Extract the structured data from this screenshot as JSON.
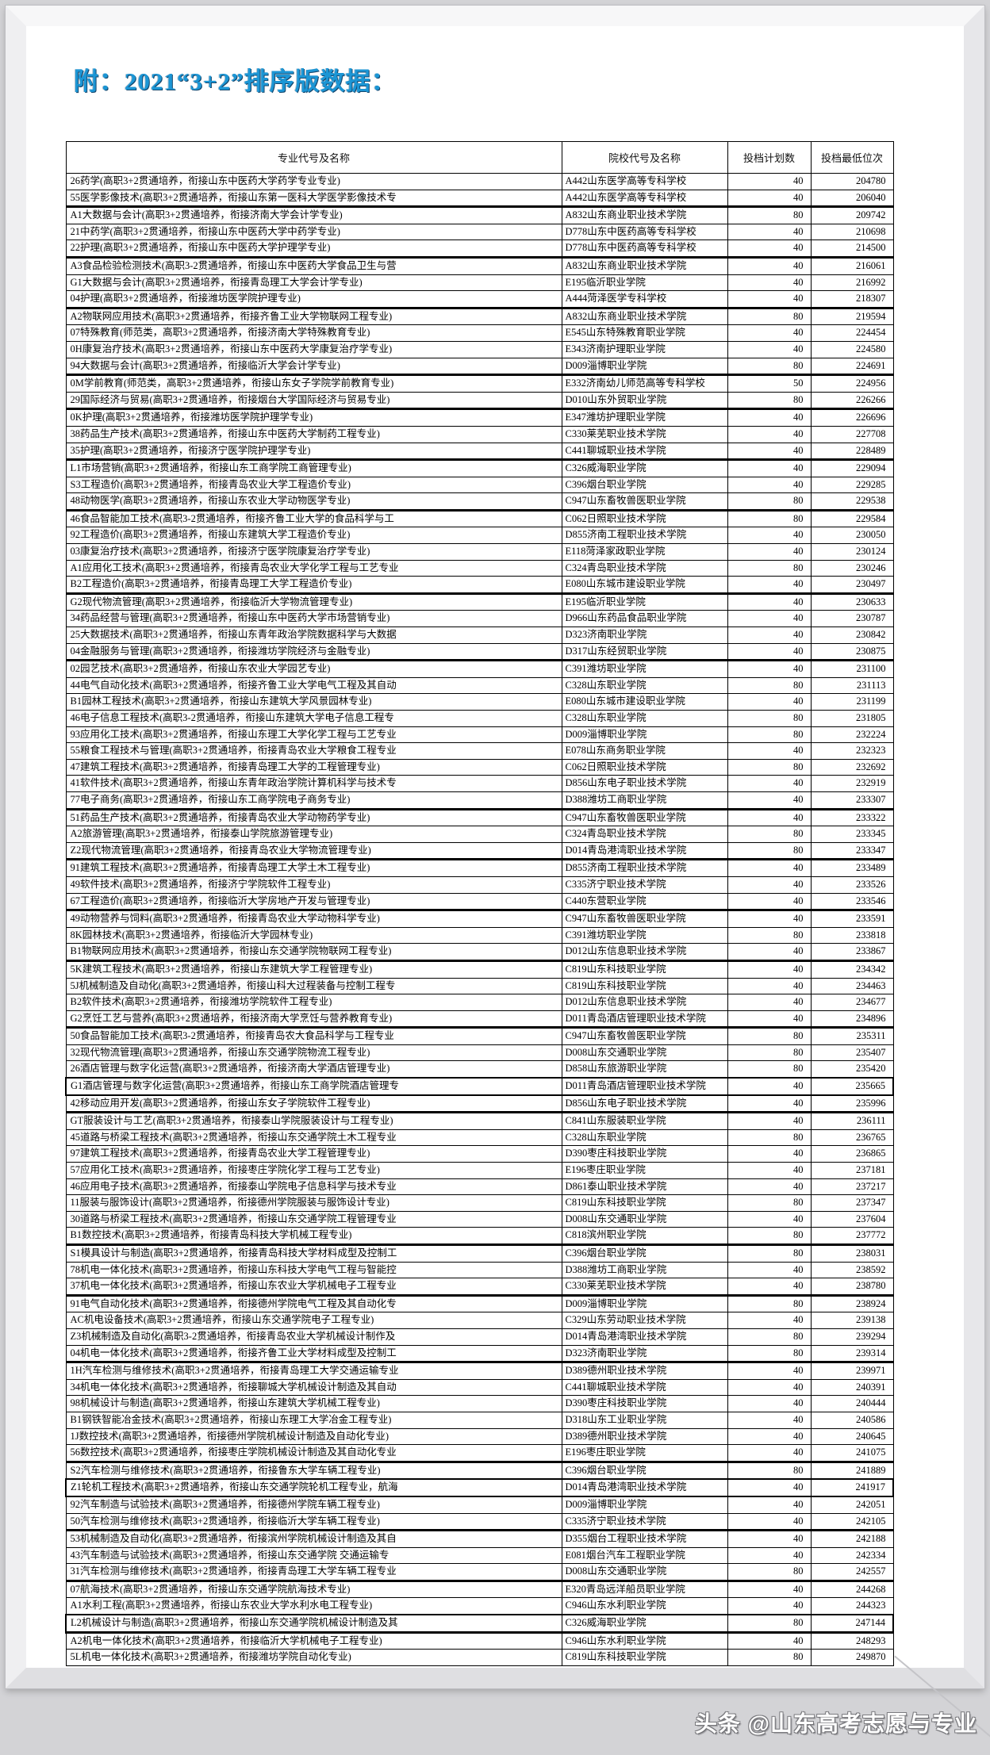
{
  "page_title": "附：2021“3+2”排序版数据：",
  "watermark": "头条 @山东高考志愿与专业",
  "colors": {
    "title_blue": "#1c96d5",
    "table_border": "#000000",
    "frame_gray": "#d3d3d6"
  },
  "table": {
    "headers": [
      "专业代号及名称",
      "院校代号及名称",
      "投档计划数",
      "投档最低位次"
    ],
    "rows": [
      {
        "major": "26药学(高职3+2贯通培养，衔接山东中医药大学药学专业专业)",
        "college": "A442山东医学高等专科学校",
        "plan": "40",
        "rank": "204780",
        "thick_top": false,
        "boxed": false
      },
      {
        "major": "55医学影像技术(高职3+2贯通培养，衔接山东第一医科大学医学影像技术专",
        "college": "A442山东医学高等专科学校",
        "plan": "40",
        "rank": "206040",
        "thick_top": false,
        "boxed": false
      },
      {
        "major": "A1大数据与会计(高职3+2贯通培养，衔接济南大学会计学专业)",
        "college": "A832山东商业职业技术学院",
        "plan": "80",
        "rank": "209742",
        "thick_top": true,
        "boxed": false
      },
      {
        "major": "21中药学(高职3+2贯通培养，衔接山东中医药大学中药学专业)",
        "college": "D778山东中医药高等专科学校",
        "plan": "40",
        "rank": "210698",
        "thick_top": false,
        "boxed": false
      },
      {
        "major": "22护理(高职3+2贯通培养，衔接山东中医药大学护理学专业)",
        "college": "D778山东中医药高等专科学校",
        "plan": "40",
        "rank": "214500",
        "thick_top": false,
        "boxed": false
      },
      {
        "major": "A3食品检验检测技术(高职3-2贯通培养，衔接山东中医药大学食品卫生与营",
        "college": "A832山东商业职业技术学院",
        "plan": "40",
        "rank": "216061",
        "thick_top": true,
        "boxed": false
      },
      {
        "major": "G1大数据与会计(高职3+2贯通培养，衔接青岛理工大学会计学专业)",
        "college": "E195临沂职业学院",
        "plan": "40",
        "rank": "216992",
        "thick_top": false,
        "boxed": false
      },
      {
        "major": "04护理(高职3+2贯通培养，衔接潍坊医学院护理专业)",
        "college": "A444菏泽医学专科学校",
        "plan": "40",
        "rank": "218307",
        "thick_top": false,
        "boxed": false
      },
      {
        "major": "A2物联网应用技术(高职3+2贯通培养，衔接齐鲁工业大学物联网工程专业)",
        "college": "A832山东商业职业技术学院",
        "plan": "80",
        "rank": "219594",
        "thick_top": true,
        "boxed": false
      },
      {
        "major": "07特殊教育(师范类，高职3+2贯通培养，衔接济南大学特殊教育专业)",
        "college": "E545山东特殊教育职业学院",
        "plan": "40",
        "rank": "224454",
        "thick_top": false,
        "boxed": false
      },
      {
        "major": "0H康复治疗技术(高职3+2贯通培养，衔接山东中医药大学康复治疗学专业)",
        "college": "E343济南护理职业学院",
        "plan": "40",
        "rank": "224580",
        "thick_top": false,
        "boxed": false
      },
      {
        "major": "94大数据与会计(高职3+2贯通培养，衔接临沂大学会计学专业)",
        "college": "D009淄博职业学院",
        "plan": "80",
        "rank": "224691",
        "thick_top": false,
        "boxed": false
      },
      {
        "major": "0M学前教育(师范类，高职3+2贯通培养，衔接山东女子学院学前教育专业)",
        "college": "E332济南幼儿师范高等专科学校",
        "plan": "50",
        "rank": "224956",
        "thick_top": true,
        "boxed": false
      },
      {
        "major": "29国际经济与贸易(高职3+2贯通培养，衔接烟台大学国际经济与贸易专业)",
        "college": "D010山东外贸职业学院",
        "plan": "80",
        "rank": "226266",
        "thick_top": false,
        "boxed": false
      },
      {
        "major": "0K护理(高职3+2贯通培养，衔接潍坊医学院护理学专业)",
        "college": "E347潍坊护理职业学院",
        "plan": "40",
        "rank": "226696",
        "thick_top": true,
        "boxed": false
      },
      {
        "major": "38药品生产技术(高职3+2贯通培养，衔接山东中医药大学制药工程专业)",
        "college": "C330莱芜职业技术学院",
        "plan": "40",
        "rank": "227708",
        "thick_top": false,
        "boxed": false
      },
      {
        "major": "35护理(高职3+2贯通培养，衔接济宁医学院护理学专业)",
        "college": "C441聊城职业技术学院",
        "plan": "40",
        "rank": "228489",
        "thick_top": false,
        "boxed": false
      },
      {
        "major": "L1市场营销(高职3+2贯通培养，衔接山东工商学院工商管理专业)",
        "college": "C326威海职业学院",
        "plan": "40",
        "rank": "229094",
        "thick_top": true,
        "boxed": false
      },
      {
        "major": "S3工程造价(高职3+2贯通培养，衔接青岛农业大学工程造价专业)",
        "college": "C396烟台职业学院",
        "plan": "40",
        "rank": "229285",
        "thick_top": false,
        "boxed": false
      },
      {
        "major": "48动物医学(高职3+2贯通培养，衔接山东农业大学动物医学专业)",
        "college": "C947山东畜牧兽医职业学院",
        "plan": "80",
        "rank": "229538",
        "thick_top": false,
        "boxed": false
      },
      {
        "major": "46食品智能加工技术(高职3-2贯通培养，衔接齐鲁工业大学的食品科学与工",
        "college": "C062日照职业技术学院",
        "plan": "80",
        "rank": "229584",
        "thick_top": true,
        "boxed": false
      },
      {
        "major": "92工程造价(高职3+2贯通培养，衔接山东建筑大学工程造价专业)",
        "college": "D855济南工程职业技术学院",
        "plan": "40",
        "rank": "230050",
        "thick_top": false,
        "boxed": false
      },
      {
        "major": "03康复治疗技术(高职3+2贯通培养，衔接济宁医学院康复治疗学专业)",
        "college": "E118菏泽家政职业学院",
        "plan": "40",
        "rank": "230124",
        "thick_top": false,
        "boxed": false
      },
      {
        "major": "A1应用化工技术(高职3+2贯通培养，衔接青岛农业大学化学工程与工艺专业",
        "college": "C324青岛职业技术学院",
        "plan": "80",
        "rank": "230246",
        "thick_top": false,
        "boxed": false
      },
      {
        "major": "B2工程造价(高职3+2贯通培养，衔接青岛理工大学工程造价专业)",
        "college": "E080山东城市建设职业学院",
        "plan": "40",
        "rank": "230497",
        "thick_top": false,
        "boxed": false
      },
      {
        "major": "G2现代物流管理(高职3+2贯通培养，衔接临沂大学物流管理专业)",
        "college": "E195临沂职业学院",
        "plan": "40",
        "rank": "230633",
        "thick_top": true,
        "boxed": false
      },
      {
        "major": "34药品经营与管理(高职3+2贯通培养，衔接山东中医药大学市场营销专业)",
        "college": "D966山东药品食品职业学院",
        "plan": "40",
        "rank": "230787",
        "thick_top": false,
        "boxed": false
      },
      {
        "major": "25大数据技术(高职3+2贯通培养，衔接山东青年政治学院数据科学与大数据",
        "college": "D323济南职业学院",
        "plan": "40",
        "rank": "230842",
        "thick_top": false,
        "boxed": false
      },
      {
        "major": "04金融服务与管理(高职3+2贯通培养，衔接潍坊学院经济与金融专业)",
        "college": "D317山东经贸职业学院",
        "plan": "40",
        "rank": "230875",
        "thick_top": false,
        "boxed": false
      },
      {
        "major": "02园艺技术(高职3+2贯通培养，衔接山东农业大学园艺专业)",
        "college": "C391潍坊职业学院",
        "plan": "40",
        "rank": "231100",
        "thick_top": true,
        "boxed": false
      },
      {
        "major": "44电气自动化技术(高职3+2贯通培养，衔接齐鲁工业大学电气工程及其自动",
        "college": "C328山东职业学院",
        "plan": "80",
        "rank": "231113",
        "thick_top": false,
        "boxed": false
      },
      {
        "major": "B1园林工程技术(高职3+2贯通培养，衔接山东建筑大学风景园林专业)",
        "college": "E080山东城市建设职业学院",
        "plan": "40",
        "rank": "231199",
        "thick_top": false,
        "boxed": false
      },
      {
        "major": "46电子信息工程技术(高职3-2贯通培养，衔接山东建筑大学电子信息工程专",
        "college": "C328山东职业学院",
        "plan": "80",
        "rank": "231805",
        "thick_top": false,
        "boxed": false
      },
      {
        "major": "93应用化工技术(高职3+2贯通培养，衔接山东理工大学化学工程与工艺专业",
        "college": "D009淄博职业学院",
        "plan": "80",
        "rank": "232224",
        "thick_top": false,
        "boxed": false
      },
      {
        "major": "55粮食工程技术与管理(高职3+2贯通培养，衔接青岛农业大学粮食工程专业",
        "college": "E078山东商务职业学院",
        "plan": "40",
        "rank": "232323",
        "thick_top": false,
        "boxed": false
      },
      {
        "major": "47建筑工程技术(高职3+2贯通培养，衔接青岛理工大学的工程管理专业)",
        "college": "C062日照职业技术学院",
        "plan": "80",
        "rank": "232692",
        "thick_top": false,
        "boxed": false
      },
      {
        "major": "41软件技术(高职3+2贯通培养，衔接山东青年政治学院计算机科学与技术专",
        "college": "D856山东电子职业技术学院",
        "plan": "40",
        "rank": "232919",
        "thick_top": false,
        "boxed": false
      },
      {
        "major": "77电子商务(高职3+2贯通培养，衔接山东工商学院电子商务专业)",
        "college": "D388潍坊工商职业学院",
        "plan": "40",
        "rank": "233307",
        "thick_top": false,
        "boxed": false
      },
      {
        "major": "51药品生产技术(高职3+2贯通培养，衔接青岛农业大学动物药学专业)",
        "college": "C947山东畜牧兽医职业学院",
        "plan": "40",
        "rank": "233322",
        "thick_top": true,
        "boxed": false
      },
      {
        "major": "A2旅游管理(高职3+2贯通培养，衔接泰山学院旅游管理专业)",
        "college": "C324青岛职业技术学院",
        "plan": "80",
        "rank": "233345",
        "thick_top": false,
        "boxed": false
      },
      {
        "major": "Z2现代物流管理(高职3+2贯通培养，衔接青岛农业大学物流管理专业)",
        "college": "D014青岛港湾职业技术学院",
        "plan": "80",
        "rank": "233347",
        "thick_top": false,
        "boxed": false
      },
      {
        "major": "91建筑工程技术(高职3+2贯通培养，衔接青岛理工大学土木工程专业)",
        "college": "D855济南工程职业技术学院",
        "plan": "40",
        "rank": "233489",
        "thick_top": true,
        "boxed": false
      },
      {
        "major": "49软件技术(高职3+2贯通培养，衔接济宁学院软件工程专业)",
        "college": "C335济宁职业技术学院",
        "plan": "40",
        "rank": "233526",
        "thick_top": false,
        "boxed": false
      },
      {
        "major": "67工程造价(高职3+2贯通培养，衔接临沂大学房地产开发与管理专业)",
        "college": "C440东营职业学院",
        "plan": "40",
        "rank": "233546",
        "thick_top": false,
        "boxed": false
      },
      {
        "major": "49动物营养与饲料(高职3+2贯通培养，衔接青岛农业大学动物科学专业)",
        "college": "C947山东畜牧兽医职业学院",
        "plan": "40",
        "rank": "233591",
        "thick_top": true,
        "boxed": false
      },
      {
        "major": "8K园林技术(高职3+2贯通培养，衔接临沂大学园林专业)",
        "college": "C391潍坊职业学院",
        "plan": "80",
        "rank": "233818",
        "thick_top": false,
        "boxed": false
      },
      {
        "major": "B1物联网应用技术(高职3+2贯通培养，衔接山东交通学院物联网工程专业)",
        "college": "D012山东信息职业技术学院",
        "plan": "40",
        "rank": "233867",
        "thick_top": false,
        "boxed": false
      },
      {
        "major": "5K建筑工程技术(高职3+2贯通培养，衔接山东建筑大学工程管理专业)",
        "college": "C819山东科技职业学院",
        "plan": "40",
        "rank": "234342",
        "thick_top": true,
        "boxed": false
      },
      {
        "major": "5J机械制造及自动化(高职3+2贯通培养，衔接山科大过程装备与控制工程专",
        "college": "C819山东科技职业学院",
        "plan": "40",
        "rank": "234463",
        "thick_top": false,
        "boxed": false
      },
      {
        "major": "B2软件技术(高职3+2贯通培养，衔接潍坊学院软件工程专业)",
        "college": "D012山东信息职业技术学院",
        "plan": "40",
        "rank": "234677",
        "thick_top": false,
        "boxed": false
      },
      {
        "major": "G2烹饪工艺与营养(高职3+2贯通培养，衔接济南大学烹饪与营养教育专业)",
        "college": "D011青岛酒店管理职业技术学院",
        "plan": "40",
        "rank": "234896",
        "thick_top": false,
        "boxed": false
      },
      {
        "major": "50食品智能加工技术(高职3-2贯通培养，衔接青岛农大食品科学与工程专业",
        "college": "C947山东畜牧兽医职业学院",
        "plan": "80",
        "rank": "235311",
        "thick_top": true,
        "boxed": false
      },
      {
        "major": "32现代物流管理(高职3+2贯通培养，衔接山东交通学院物流工程专业)",
        "college": "D008山东交通职业学院",
        "plan": "80",
        "rank": "235407",
        "thick_top": false,
        "boxed": false
      },
      {
        "major": "26酒店管理与数字化运营(高职3+2贯通培养，衔接济南大学酒店管理专业)",
        "college": "D858山东旅游职业学院",
        "plan": "80",
        "rank": "235420",
        "thick_top": false,
        "boxed": false
      },
      {
        "major": "G1酒店管理与数字化运营(高职3+2贯通培养，衔接山东工商学院酒店管理专",
        "college": "D011青岛酒店管理职业技术学院",
        "plan": "40",
        "rank": "235665",
        "thick_top": false,
        "boxed": true
      },
      {
        "major": "42移动应用开发(高职3+2贯通培养，衔接山东女子学院软件工程专业)",
        "college": "D856山东电子职业技术学院",
        "plan": "40",
        "rank": "235996",
        "thick_top": false,
        "boxed": false
      },
      {
        "major": "GT服装设计与工艺(高职3+2贯通培养，衔接泰山学院服装设计与工程专业)",
        "college": "C841山东服装职业学院",
        "plan": "40",
        "rank": "236111",
        "thick_top": true,
        "boxed": false
      },
      {
        "major": "45道路与桥梁工程技术(高职3+2贯通培养，衔接山东交通学院土木工程专业",
        "college": "C328山东职业学院",
        "plan": "80",
        "rank": "236765",
        "thick_top": false,
        "boxed": false
      },
      {
        "major": "97建筑工程技术(高职3+2贯通培养，衔接青岛农业大学工程管理专业)",
        "college": "D390枣庄科技职业学院",
        "plan": "40",
        "rank": "236865",
        "thick_top": false,
        "boxed": false
      },
      {
        "major": "57应用化工技术(高职3+2贯通培养，衔接枣庄学院化学工程与工艺专业)",
        "college": "E196枣庄职业学院",
        "plan": "40",
        "rank": "237181",
        "thick_top": false,
        "boxed": false
      },
      {
        "major": "46应用电子技术(高职3+2贯通培养，衔接泰山学院电子信息科学与技术专业",
        "college": "D861泰山职业技术学院",
        "plan": "40",
        "rank": "237217",
        "thick_top": false,
        "boxed": false
      },
      {
        "major": "11服装与服饰设计(高职3+2贯通培养，衔接德州学院服装与服饰设计专业)",
        "college": "C819山东科技职业学院",
        "plan": "80",
        "rank": "237347",
        "thick_top": false,
        "boxed": false
      },
      {
        "major": "30道路与桥梁工程技术(高职3+2贯通培养，衔接山东交通学院工程管理专业",
        "college": "D008山东交通职业学院",
        "plan": "40",
        "rank": "237604",
        "thick_top": false,
        "boxed": false
      },
      {
        "major": "B1数控技术(高职3+2贯通培养，衔接青岛科技大学机械工程专业)",
        "college": "C818滨州职业学院",
        "plan": "80",
        "rank": "237772",
        "thick_top": false,
        "boxed": false
      },
      {
        "major": "S1模具设计与制造(高职3+2贯通培养，衔接青岛科技大学材料成型及控制工",
        "college": "C396烟台职业学院",
        "plan": "80",
        "rank": "238031",
        "thick_top": true,
        "boxed": false
      },
      {
        "major": "78机电一体化技术(高职3+2贯通培养，衔接山东科技大学电气工程与智能控",
        "college": "D388潍坊工商职业学院",
        "plan": "40",
        "rank": "238592",
        "thick_top": false,
        "boxed": false
      },
      {
        "major": "37机电一体化技术(高职3+2贯通培养，衔接山东农业大学机械电子工程专业",
        "college": "C330莱芜职业技术学院",
        "plan": "40",
        "rank": "238780",
        "thick_top": false,
        "boxed": false
      },
      {
        "major": "91电气自动化技术(高职3+2贯通培养，衔接德州学院电气工程及其自动化专",
        "college": "D009淄博职业学院",
        "plan": "80",
        "rank": "238924",
        "thick_top": true,
        "boxed": false
      },
      {
        "major": "AC机电设备技术(高职3+2贯通培养，衔接山东交通学院电子工程专业)",
        "college": "C329山东劳动职业技术学院",
        "plan": "40",
        "rank": "239138",
        "thick_top": false,
        "boxed": false
      },
      {
        "major": "Z3机械制造及自动化(高职3-2贯通培养，衔接青岛农业大学机械设计制作及",
        "college": "D014青岛港湾职业技术学院",
        "plan": "80",
        "rank": "239294",
        "thick_top": false,
        "boxed": false
      },
      {
        "major": "04机电一体化技术(高职3+2贯通培养，衔接齐鲁工业大学材料成型及控制工",
        "college": "D323济南职业学院",
        "plan": "80",
        "rank": "239314",
        "thick_top": false,
        "boxed": false
      },
      {
        "major": "1H汽车检测与维修技术(高职3+2贯通培养，衔接青岛理工大学交通运输专业",
        "college": "D389德州职业技术学院",
        "plan": "40",
        "rank": "239971",
        "thick_top": true,
        "boxed": false
      },
      {
        "major": "34机电一体化技术(高职3+2贯通培养，衔接聊城大学机械设计制造及其自动",
        "college": "C441聊城职业技术学院",
        "plan": "40",
        "rank": "240391",
        "thick_top": false,
        "boxed": false
      },
      {
        "major": "98机械设计与制造(高职3+2贯通培养，衔接山东建筑大学机械工程专业)",
        "college": "D390枣庄科技职业学院",
        "plan": "40",
        "rank": "240444",
        "thick_top": false,
        "boxed": false
      },
      {
        "major": "B1钢铁智能冶金技术(高职3+2贯通培养，衔接山东理工大学冶金工程专业)",
        "college": "D318山东工业职业学院",
        "plan": "40",
        "rank": "240586",
        "thick_top": false,
        "boxed": false
      },
      {
        "major": "1J数控技术(高职3+2贯通培养，衔接德州学院机械设计制造及自动化专业)",
        "college": "D389德州职业技术学院",
        "plan": "40",
        "rank": "240645",
        "thick_top": false,
        "boxed": false
      },
      {
        "major": "56数控技术(高职3+2贯通培养，衔接枣庄学院机械设计制造及其自动化专业",
        "college": "E196枣庄职业学院",
        "plan": "40",
        "rank": "241075",
        "thick_top": false,
        "boxed": false
      },
      {
        "major": "S2汽车检测与维修技术(高职3+2贯通培养，衔接鲁东大学车辆工程专业)",
        "college": "C396烟台职业学院",
        "plan": "80",
        "rank": "241889",
        "thick_top": true,
        "boxed": false
      },
      {
        "major": "Z1轮机工程技术(高职3+2贯通培养，衔接山东交通学院轮机工程专业，航海",
        "college": "D014青岛港湾职业技术学院",
        "plan": "40",
        "rank": "241917",
        "thick_top": false,
        "boxed": true
      },
      {
        "major": "92汽车制造与试验技术(高职3+2贯通培养，衔接德州学院车辆工程专业)",
        "college": "D009淄博职业学院",
        "plan": "40",
        "rank": "242051",
        "thick_top": false,
        "boxed": false
      },
      {
        "major": "50汽车检测与维修技术(高职3+2贯通培养，衔接临沂大学车辆工程专业)",
        "college": "C335济宁职业技术学院",
        "plan": "40",
        "rank": "242105",
        "thick_top": false,
        "boxed": false
      },
      {
        "major": "53机械制造及自动化(高职3+2贯通培养，衔接滨州学院机械设计制造及其自",
        "college": "D355烟台工程职业技术学院",
        "plan": "40",
        "rank": "242188",
        "thick_top": true,
        "boxed": false
      },
      {
        "major": "43汽车制造与试验技术(高职3+2贯通培养，衔接山东交通学院 交通运输专",
        "college": "E081烟台汽车工程职业学院",
        "plan": "40",
        "rank": "242334",
        "thick_top": false,
        "boxed": false
      },
      {
        "major": "31汽车检测与维修技术(高职3+2贯通培养，衔接青岛理工大学车辆工程专业",
        "college": "D008山东交通职业学院",
        "plan": "80",
        "rank": "242557",
        "thick_top": false,
        "boxed": false
      },
      {
        "major": "07航海技术(高职3+2贯通培养，衔接山东交通学院航海技术专业)",
        "college": "E320青岛远洋船员职业学院",
        "plan": "40",
        "rank": "244268",
        "thick_top": true,
        "boxed": false
      },
      {
        "major": "A1水利工程(高职3+2贯通培养，衔接山东农业大学水利水电工程专业)",
        "college": "C946山东水利职业学院",
        "plan": "40",
        "rank": "244323",
        "thick_top": false,
        "boxed": false
      },
      {
        "major": "L2机械设计与制造(高职3+2贯通培养，衔接山东交通学院机械设计制造及其",
        "college": "C326威海职业学院",
        "plan": "80",
        "rank": "247144",
        "thick_top": false,
        "boxed": true
      },
      {
        "major": "A2机电一体化技术(高职3+2贯通培养，衔接临沂大学机械电子工程专业)",
        "college": "C946山东水利职业学院",
        "plan": "40",
        "rank": "248293",
        "thick_top": true,
        "boxed": false
      },
      {
        "major": "5L机电一体化技术(高职3+2贯通培养，衔接潍坊学院自动化专业)",
        "college": "C819山东科技职业学院",
        "plan": "80",
        "rank": "249870",
        "thick_top": false,
        "boxed": false
      }
    ]
  }
}
